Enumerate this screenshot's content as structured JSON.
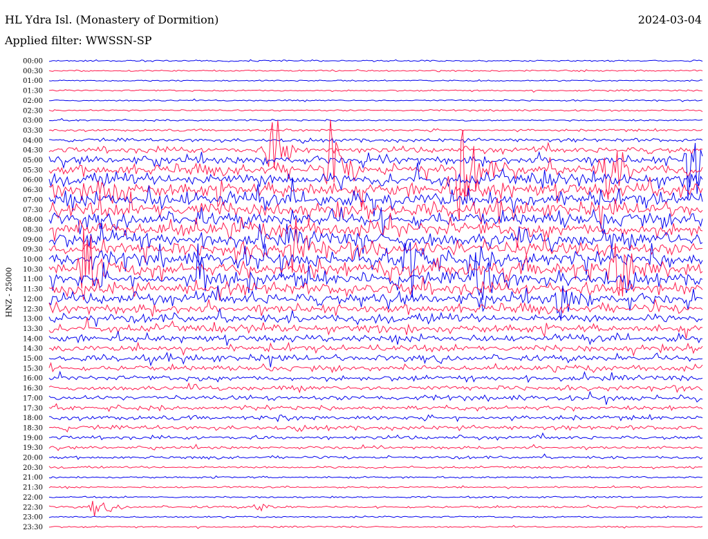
{
  "header": {
    "station": "HL Ydra Isl. (Monastery of Dormition)",
    "date": "2024-03-04",
    "filter_label": "Applied filter: WWSSN-SP"
  },
  "chart_data": {
    "type": "line",
    "title": "HL Ydra Isl. (Monastery of Dormition)",
    "ylabel": "HNZ - 25000",
    "row_labels": [
      "00:00",
      "00:30",
      "01:00",
      "01:30",
      "02:00",
      "02:30",
      "03:00",
      "03:30",
      "04:00",
      "04:30",
      "05:00",
      "05:30",
      "06:00",
      "06:30",
      "07:00",
      "07:30",
      "08:00",
      "08:30",
      "09:00",
      "09:30",
      "10:00",
      "10:30",
      "11:00",
      "11:30",
      "12:00",
      "12:30",
      "13:00",
      "13:30",
      "14:00",
      "14:30",
      "15:00",
      "15:30",
      "16:00",
      "16:30",
      "17:00",
      "17:30",
      "18:00",
      "18:30",
      "19:00",
      "19:30",
      "20:00",
      "20:30",
      "21:00",
      "21:30",
      "22:00",
      "22:30",
      "23:00",
      "23:30"
    ],
    "colors": [
      "#0000ee",
      "#ff1a4d"
    ],
    "activity": [
      0.05,
      0.05,
      0.04,
      0.05,
      0.05,
      0.06,
      0.06,
      0.1,
      0.2,
      0.35,
      0.5,
      0.7,
      0.8,
      0.9,
      0.9,
      0.9,
      0.9,
      0.9,
      0.9,
      0.9,
      0.85,
      0.85,
      0.8,
      0.75,
      0.7,
      0.6,
      0.55,
      0.5,
      0.45,
      0.4,
      0.4,
      0.35,
      0.3,
      0.3,
      0.3,
      0.25,
      0.25,
      0.25,
      0.2,
      0.15,
      0.15,
      0.1,
      0.08,
      0.06,
      0.06,
      0.1,
      0.06,
      0.05
    ],
    "events": [
      {
        "row": 9,
        "x": 0.34,
        "amp": 70
      },
      {
        "row": 11,
        "x": 0.43,
        "amp": 60
      },
      {
        "row": 11,
        "x": 0.63,
        "amp": 90
      },
      {
        "row": 10,
        "x": 0.98,
        "amp": 90
      },
      {
        "row": 11,
        "x": 0.85,
        "amp": 60
      },
      {
        "row": 13,
        "x": 0.08,
        "amp": 40
      },
      {
        "row": 19,
        "x": 0.37,
        "amp": 40
      },
      {
        "row": 20,
        "x": 0.55,
        "amp": 60
      },
      {
        "row": 21,
        "x": 0.05,
        "amp": 80
      },
      {
        "row": 21,
        "x": 0.87,
        "amp": 50
      },
      {
        "row": 22,
        "x": 0.66,
        "amp": 60
      },
      {
        "row": 22,
        "x": 0.23,
        "amp": 40
      },
      {
        "row": 24,
        "x": 0.78,
        "amp": 35
      },
      {
        "row": 45,
        "x": 0.07,
        "amp": 12
      },
      {
        "row": 45,
        "x": 0.32,
        "amp": 8
      }
    ]
  }
}
